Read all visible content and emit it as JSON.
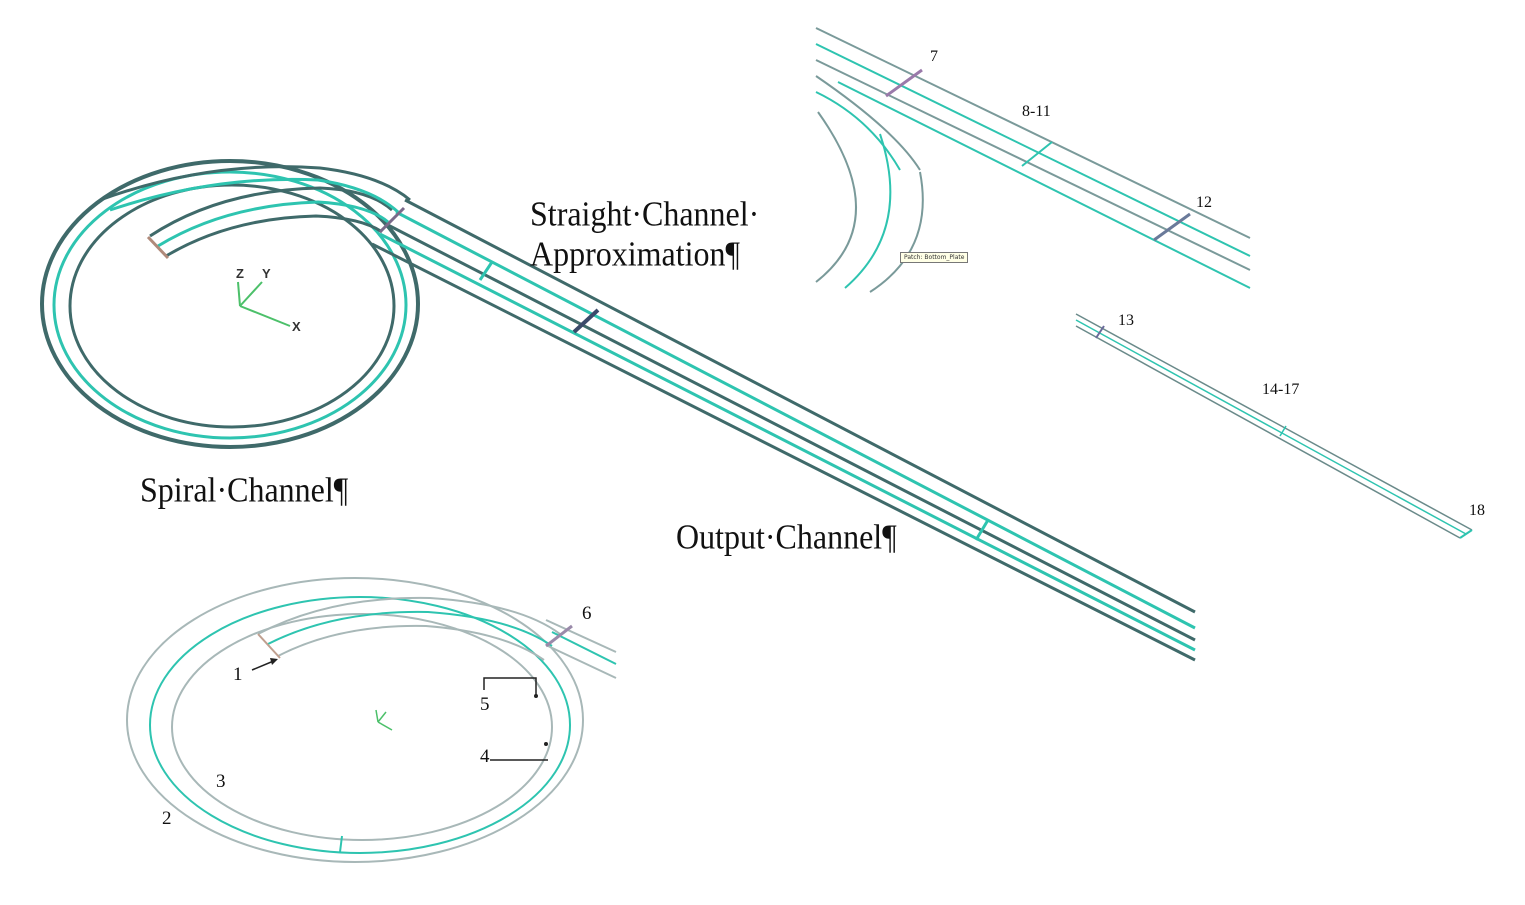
{
  "captions": {
    "straight_line1": "Straight·Channel·",
    "straight_line2": "Approximation¶",
    "spiral": "Spiral·Channel¶",
    "output": "Output·Channel¶"
  },
  "axes": {
    "z": "Z",
    "y": "Y",
    "x": "X"
  },
  "tooltip": "Patch: Bottom_Plate",
  "labels": {
    "l1": "1",
    "l2": "2",
    "l3": "3",
    "l4": "4",
    "l5": "5",
    "l6": "6",
    "l7": "7",
    "l8_11": "8-11",
    "l12": "12",
    "l13": "13",
    "l14_17": "14-17",
    "l18": "18"
  },
  "colors": {
    "outline": "#3f6a6a",
    "centerline": "#2ec4b0",
    "light_outline": "#8aa5a5",
    "axis_green": "#4cc06a"
  }
}
